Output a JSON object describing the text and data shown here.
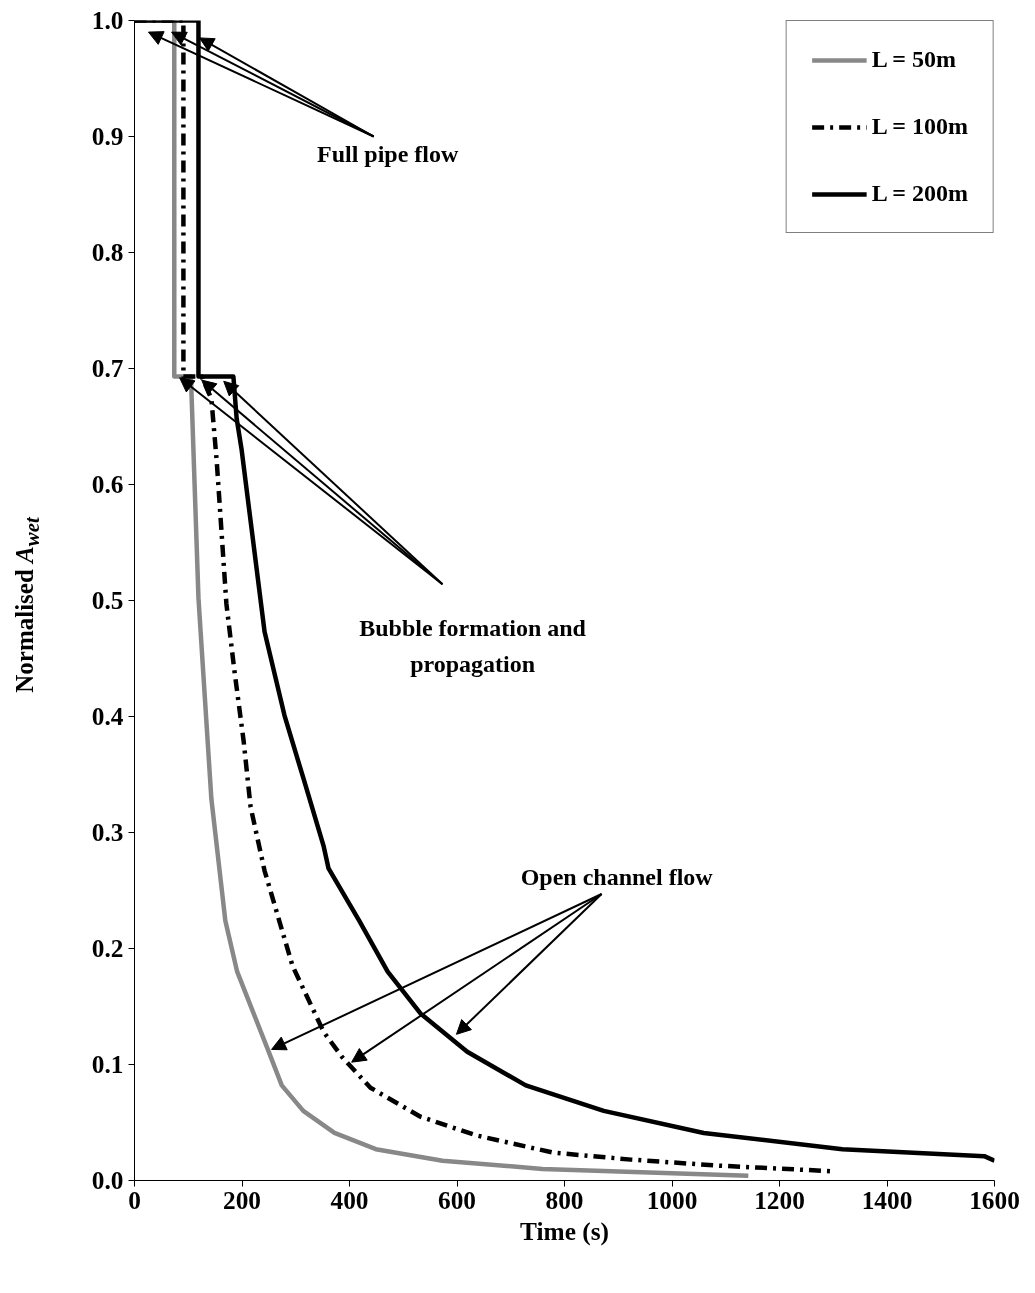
{
  "chart_data": {
    "type": "line",
    "xlabel": "Time (s)",
    "ylabel": "Normalised A$_{wet}$",
    "xlim": [
      0,
      1600
    ],
    "ylim": [
      0,
      1.0
    ],
    "xticks": [
      0,
      200,
      400,
      600,
      800,
      1000,
      1200,
      1400,
      1600
    ],
    "yticks": [
      {
        "value": 0,
        "label": "0.0"
      },
      0.1,
      0.2,
      0.3,
      0.4,
      0.5,
      0.6,
      0.7,
      0.8,
      0.9,
      {
        "value": 1,
        "label": "1.0"
      }
    ],
    "grid": false,
    "legend": "top right",
    "marker": "none",
    "annotations": [
      {
        "text": "Full pipe flow",
        "x": 69,
        "y": 0.99
      },
      {
        "text": "Bubble formation and propagation",
        "x": 125,
        "y": 0.69
      },
      {
        "text": "Open channel flow",
        "x": 404,
        "y": 0.102
      }
    ],
    "series": [
      {
        "name": "L = 50m",
        "color": "#888888",
        "line_style": "solid",
        "x": [
          0,
          74,
          74,
          105,
          119,
          143,
          169,
          191,
          248,
          274,
          314,
          372,
          449,
          573,
          759,
          1142
        ],
        "values": [
          1.0,
          1.0,
          0.693,
          0.693,
          0.502,
          0.329,
          0.224,
          0.18,
          0.113,
          0.082,
          0.06,
          0.041,
          0.027,
          0.017,
          0.01,
          0.004
        ]
      },
      {
        "name": "L = 100m",
        "color": "#000000",
        "line_style": "dashdot",
        "x": [
          0,
          91,
          91,
          125,
          143,
          153,
          171,
          186,
          203,
          216,
          242,
          294,
          352,
          387,
          439,
          532,
          635,
          779,
          924,
          1079,
          1297
        ],
        "values": [
          1.0,
          1.0,
          0.693,
          0.693,
          0.674,
          0.62,
          0.497,
          0.439,
          0.379,
          0.322,
          0.267,
          0.185,
          0.128,
          0.106,
          0.08,
          0.055,
          0.039,
          0.024,
          0.018,
          0.013,
          0.008
        ]
      },
      {
        "name": "L = 200m",
        "color": "#000000",
        "line_style": "solid",
        "x": [
          0,
          119,
          119,
          184,
          190,
          199,
          242,
          279,
          316,
          352,
          361,
          418,
          471,
          532,
          619,
          728,
          873,
          1059,
          1317,
          1581,
          1600
        ],
        "values": [
          1.0,
          1.0,
          0.693,
          0.693,
          0.657,
          0.631,
          0.473,
          0.401,
          0.344,
          0.288,
          0.269,
          0.224,
          0.18,
          0.144,
          0.111,
          0.082,
          0.06,
          0.041,
          0.027,
          0.021,
          0.017
        ]
      }
    ]
  }
}
